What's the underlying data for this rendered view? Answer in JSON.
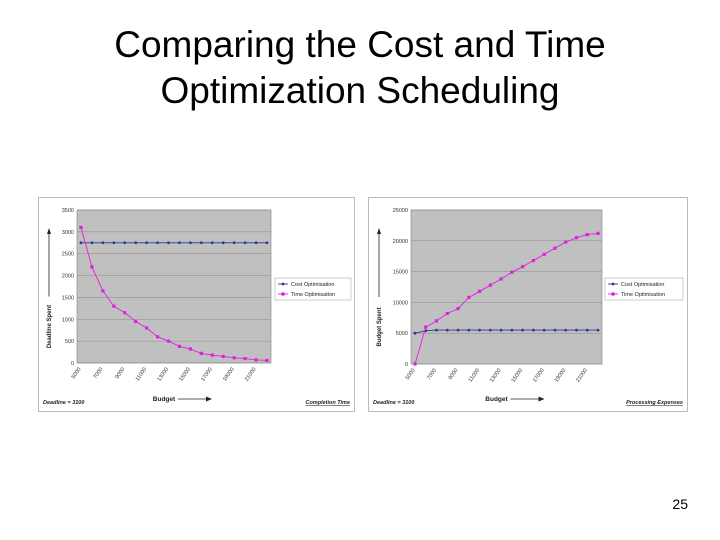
{
  "title": {
    "line1": "Comparing the Cost and Time",
    "line2": "Optimization Scheduling"
  },
  "slide_number": "25",
  "chart_data": [
    {
      "type": "line",
      "ylabel": "Deadline Spent",
      "xlabel": "Budget",
      "ylim": [
        0,
        3500
      ],
      "yticks": [
        "0",
        "500",
        "1000",
        "1500",
        "2000",
        "2500",
        "3000",
        "3500"
      ],
      "xticks": [
        "5000",
        "7000",
        "9000",
        "11000",
        "13000",
        "15000",
        "17000",
        "19000",
        "21000"
      ],
      "x": [
        5000,
        6000,
        7000,
        8000,
        9000,
        10000,
        11000,
        12000,
        13000,
        14000,
        15000,
        16000,
        17000,
        18000,
        19000,
        20000,
        21000,
        22000
      ],
      "series": [
        {
          "name": "Cost Optimisation",
          "color": "#2b3a8f",
          "values": [
            2750,
            2750,
            2750,
            2750,
            2750,
            2750,
            2750,
            2750,
            2750,
            2750,
            2750,
            2750,
            2750,
            2750,
            2750,
            2750,
            2750,
            2750
          ]
        },
        {
          "name": "Time Optimisation",
          "color": "#e020e0",
          "values": [
            3100,
            2200,
            1650,
            1300,
            1150,
            950,
            800,
            600,
            500,
            380,
            320,
            220,
            180,
            150,
            120,
            100,
            70,
            60
          ]
        }
      ],
      "legend_position": "right",
      "note_left": "Deadline = 3100",
      "note_right": "Completion Time"
    },
    {
      "type": "line",
      "ylabel": "Budget Spent",
      "xlabel": "Budget",
      "ylim": [
        0,
        25000
      ],
      "yticks": [
        "0",
        "5000",
        "10000",
        "15000",
        "20000",
        "25000"
      ],
      "xticks": [
        "5000",
        "7000",
        "9000",
        "11000",
        "13000",
        "15000",
        "17000",
        "19000",
        "21000"
      ],
      "x": [
        5000,
        6000,
        7000,
        8000,
        9000,
        10000,
        11000,
        12000,
        13000,
        14000,
        15000,
        16000,
        17000,
        18000,
        19000,
        20000,
        21000,
        22000
      ],
      "series": [
        {
          "name": "Cost Optimisation",
          "color": "#2b3a8f",
          "values": [
            5000,
            5400,
            5500,
            5500,
            5500,
            5500,
            5500,
            5500,
            5500,
            5500,
            5500,
            5500,
            5500,
            5500,
            5500,
            5500,
            5500,
            5500
          ]
        },
        {
          "name": "Time Optimisation",
          "color": "#e020e0",
          "values": [
            0,
            6000,
            7000,
            8200,
            9000,
            10800,
            11800,
            12800,
            13800,
            14900,
            15800,
            16800,
            17800,
            18800,
            19800,
            20500,
            21000,
            21200
          ]
        }
      ],
      "legend_position": "right",
      "note_left": "Deadline = 3100",
      "note_right": "Processing Expenses"
    }
  ]
}
